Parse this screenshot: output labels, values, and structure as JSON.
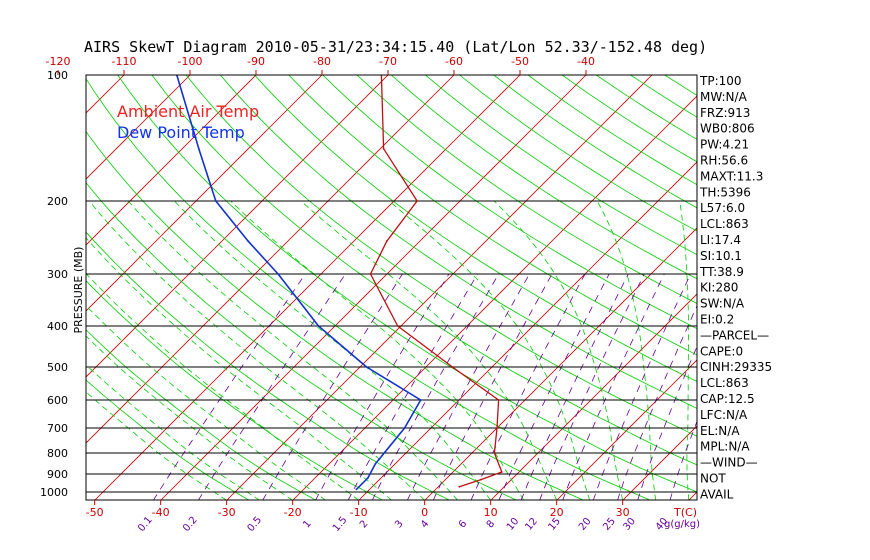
{
  "chart_data": {
    "type": "skewt",
    "title": "AIRS SkewT Diagram 2010-05-31/23:34:15.40 (Lat/Lon 52.33/-152.48 deg)",
    "ylabel": "PRESSURE (MB)",
    "xlabel": "T(C)",
    "mixing_ratio_unit": "g(g/kg)",
    "pressure_ticks": [
      100,
      200,
      300,
      400,
      500,
      600,
      700,
      800,
      900,
      1000
    ],
    "top_temp_ticks": [
      -120,
      -110,
      -100,
      -90,
      -80,
      -70,
      -60,
      -50,
      -40
    ],
    "bottom_temp_ticks": [
      -50,
      -40,
      -30,
      -20,
      -10,
      0,
      10,
      20,
      30
    ],
    "mixing_ratio_ticks": [
      "0.1",
      "0.2",
      "0.5",
      "1",
      "1.5",
      "2",
      "3",
      "4",
      "6",
      "8",
      "10",
      "12",
      "15",
      "20",
      "25",
      "30",
      "40"
    ],
    "legend": [
      {
        "name": "Ambient Air Temp",
        "color": "#ee2222"
      },
      {
        "name": "Dew Point Temp",
        "color": "#1133ee"
      }
    ],
    "series": [
      {
        "name": "Ambient Air Temp",
        "color": "#bb1111",
        "points": [
          {
            "p": 970,
            "t": 3.2
          },
          {
            "p": 930,
            "t": 5.4
          },
          {
            "p": 890,
            "t": 7.4
          },
          {
            "p": 800,
            "t": 3.4
          },
          {
            "p": 700,
            "t": 0.0
          },
          {
            "p": 600,
            "t": -4.0
          },
          {
            "p": 500,
            "t": -16.0
          },
          {
            "p": 400,
            "t": -30.5
          },
          {
            "p": 300,
            "t": -42.5
          },
          {
            "p": 250,
            "t": -45.0
          },
          {
            "p": 200,
            "t": -46.5
          },
          {
            "p": 150,
            "t": -59.5
          },
          {
            "p": 100,
            "t": -71.0
          }
        ]
      },
      {
        "name": "Dew Point Temp",
        "color": "#1133cc",
        "points": [
          {
            "p": 985,
            "t": -12.0
          },
          {
            "p": 920,
            "t": -12.0
          },
          {
            "p": 850,
            "t": -13.0
          },
          {
            "p": 700,
            "t": -14.0
          },
          {
            "p": 600,
            "t": -15.8
          },
          {
            "p": 500,
            "t": -29.0
          },
          {
            "p": 400,
            "t": -42.5
          },
          {
            "p": 300,
            "t": -56.5
          },
          {
            "p": 250,
            "t": -66.0
          },
          {
            "p": 200,
            "t": -77.0
          },
          {
            "p": 150,
            "t": -87.5
          },
          {
            "p": 100,
            "t": -102.0
          }
        ]
      }
    ],
    "indices": [
      "TP:100",
      "MW:N/A",
      "FRZ:913",
      "WB0:806",
      "PW:4.21",
      "RH:56.6",
      "MAXT:11.3",
      "TH:5396",
      "L57:6.0",
      "LCL:863",
      "LI:17.4",
      "SI:10.1",
      "TT:38.9",
      "KI:280",
      "SW:N/A",
      "EI:0.2",
      "—PARCEL—",
      "CAPE:0",
      "CINH:29335",
      "LCL:863",
      "CAP:12.5",
      "LFC:N/A",
      "EL:N/A",
      "MPL:N/A",
      "—WIND—",
      "NOT",
      "AVAIL"
    ],
    "colors": {
      "isotherm": "#cc0000",
      "dry_adiabat": "#00cc00",
      "moist_adiabat": "#00cc00",
      "mixing_ratio": "#660099",
      "isobar": "#000000",
      "temp_tick_label": "#cc0000",
      "pressure_tick_label": "#000000"
    },
    "grid": true
  }
}
